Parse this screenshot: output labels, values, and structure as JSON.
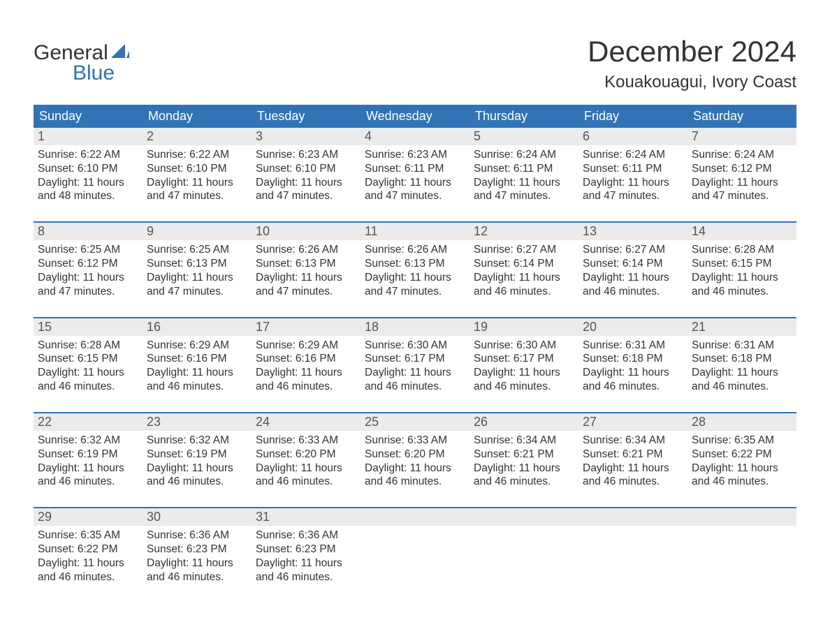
{
  "logo": {
    "word1": "General",
    "word2": "Blue",
    "brand_color": "#3173b4",
    "text_color": "#333333"
  },
  "title": "December 2024",
  "location": "Kouakouagui, Ivory Coast",
  "colors": {
    "header_bg": "#3173b4",
    "header_text": "#ffffff",
    "daynum_bg": "#ebebeb",
    "daynum_text": "#555555",
    "body_text": "#333333",
    "row_border": "#3173b4",
    "page_bg": "#ffffff"
  },
  "weekdays": [
    "Sunday",
    "Monday",
    "Tuesday",
    "Wednesday",
    "Thursday",
    "Friday",
    "Saturday"
  ],
  "weeks": [
    [
      {
        "day": "1",
        "sunrise": "Sunrise: 6:22 AM",
        "sunset": "Sunset: 6:10 PM",
        "dl1": "Daylight: 11 hours",
        "dl2": "and 48 minutes."
      },
      {
        "day": "2",
        "sunrise": "Sunrise: 6:22 AM",
        "sunset": "Sunset: 6:10 PM",
        "dl1": "Daylight: 11 hours",
        "dl2": "and 47 minutes."
      },
      {
        "day": "3",
        "sunrise": "Sunrise: 6:23 AM",
        "sunset": "Sunset: 6:10 PM",
        "dl1": "Daylight: 11 hours",
        "dl2": "and 47 minutes."
      },
      {
        "day": "4",
        "sunrise": "Sunrise: 6:23 AM",
        "sunset": "Sunset: 6:11 PM",
        "dl1": "Daylight: 11 hours",
        "dl2": "and 47 minutes."
      },
      {
        "day": "5",
        "sunrise": "Sunrise: 6:24 AM",
        "sunset": "Sunset: 6:11 PM",
        "dl1": "Daylight: 11 hours",
        "dl2": "and 47 minutes."
      },
      {
        "day": "6",
        "sunrise": "Sunrise: 6:24 AM",
        "sunset": "Sunset: 6:11 PM",
        "dl1": "Daylight: 11 hours",
        "dl2": "and 47 minutes."
      },
      {
        "day": "7",
        "sunrise": "Sunrise: 6:24 AM",
        "sunset": "Sunset: 6:12 PM",
        "dl1": "Daylight: 11 hours",
        "dl2": "and 47 minutes."
      }
    ],
    [
      {
        "day": "8",
        "sunrise": "Sunrise: 6:25 AM",
        "sunset": "Sunset: 6:12 PM",
        "dl1": "Daylight: 11 hours",
        "dl2": "and 47 minutes."
      },
      {
        "day": "9",
        "sunrise": "Sunrise: 6:25 AM",
        "sunset": "Sunset: 6:13 PM",
        "dl1": "Daylight: 11 hours",
        "dl2": "and 47 minutes."
      },
      {
        "day": "10",
        "sunrise": "Sunrise: 6:26 AM",
        "sunset": "Sunset: 6:13 PM",
        "dl1": "Daylight: 11 hours",
        "dl2": "and 47 minutes."
      },
      {
        "day": "11",
        "sunrise": "Sunrise: 6:26 AM",
        "sunset": "Sunset: 6:13 PM",
        "dl1": "Daylight: 11 hours",
        "dl2": "and 47 minutes."
      },
      {
        "day": "12",
        "sunrise": "Sunrise: 6:27 AM",
        "sunset": "Sunset: 6:14 PM",
        "dl1": "Daylight: 11 hours",
        "dl2": "and 46 minutes."
      },
      {
        "day": "13",
        "sunrise": "Sunrise: 6:27 AM",
        "sunset": "Sunset: 6:14 PM",
        "dl1": "Daylight: 11 hours",
        "dl2": "and 46 minutes."
      },
      {
        "day": "14",
        "sunrise": "Sunrise: 6:28 AM",
        "sunset": "Sunset: 6:15 PM",
        "dl1": "Daylight: 11 hours",
        "dl2": "and 46 minutes."
      }
    ],
    [
      {
        "day": "15",
        "sunrise": "Sunrise: 6:28 AM",
        "sunset": "Sunset: 6:15 PM",
        "dl1": "Daylight: 11 hours",
        "dl2": "and 46 minutes."
      },
      {
        "day": "16",
        "sunrise": "Sunrise: 6:29 AM",
        "sunset": "Sunset: 6:16 PM",
        "dl1": "Daylight: 11 hours",
        "dl2": "and 46 minutes."
      },
      {
        "day": "17",
        "sunrise": "Sunrise: 6:29 AM",
        "sunset": "Sunset: 6:16 PM",
        "dl1": "Daylight: 11 hours",
        "dl2": "and 46 minutes."
      },
      {
        "day": "18",
        "sunrise": "Sunrise: 6:30 AM",
        "sunset": "Sunset: 6:17 PM",
        "dl1": "Daylight: 11 hours",
        "dl2": "and 46 minutes."
      },
      {
        "day": "19",
        "sunrise": "Sunrise: 6:30 AM",
        "sunset": "Sunset: 6:17 PM",
        "dl1": "Daylight: 11 hours",
        "dl2": "and 46 minutes."
      },
      {
        "day": "20",
        "sunrise": "Sunrise: 6:31 AM",
        "sunset": "Sunset: 6:18 PM",
        "dl1": "Daylight: 11 hours",
        "dl2": "and 46 minutes."
      },
      {
        "day": "21",
        "sunrise": "Sunrise: 6:31 AM",
        "sunset": "Sunset: 6:18 PM",
        "dl1": "Daylight: 11 hours",
        "dl2": "and 46 minutes."
      }
    ],
    [
      {
        "day": "22",
        "sunrise": "Sunrise: 6:32 AM",
        "sunset": "Sunset: 6:19 PM",
        "dl1": "Daylight: 11 hours",
        "dl2": "and 46 minutes."
      },
      {
        "day": "23",
        "sunrise": "Sunrise: 6:32 AM",
        "sunset": "Sunset: 6:19 PM",
        "dl1": "Daylight: 11 hours",
        "dl2": "and 46 minutes."
      },
      {
        "day": "24",
        "sunrise": "Sunrise: 6:33 AM",
        "sunset": "Sunset: 6:20 PM",
        "dl1": "Daylight: 11 hours",
        "dl2": "and 46 minutes."
      },
      {
        "day": "25",
        "sunrise": "Sunrise: 6:33 AM",
        "sunset": "Sunset: 6:20 PM",
        "dl1": "Daylight: 11 hours",
        "dl2": "and 46 minutes."
      },
      {
        "day": "26",
        "sunrise": "Sunrise: 6:34 AM",
        "sunset": "Sunset: 6:21 PM",
        "dl1": "Daylight: 11 hours",
        "dl2": "and 46 minutes."
      },
      {
        "day": "27",
        "sunrise": "Sunrise: 6:34 AM",
        "sunset": "Sunset: 6:21 PM",
        "dl1": "Daylight: 11 hours",
        "dl2": "and 46 minutes."
      },
      {
        "day": "28",
        "sunrise": "Sunrise: 6:35 AM",
        "sunset": "Sunset: 6:22 PM",
        "dl1": "Daylight: 11 hours",
        "dl2": "and 46 minutes."
      }
    ],
    [
      {
        "day": "29",
        "sunrise": "Sunrise: 6:35 AM",
        "sunset": "Sunset: 6:22 PM",
        "dl1": "Daylight: 11 hours",
        "dl2": "and 46 minutes."
      },
      {
        "day": "30",
        "sunrise": "Sunrise: 6:36 AM",
        "sunset": "Sunset: 6:23 PM",
        "dl1": "Daylight: 11 hours",
        "dl2": "and 46 minutes."
      },
      {
        "day": "31",
        "sunrise": "Sunrise: 6:36 AM",
        "sunset": "Sunset: 6:23 PM",
        "dl1": "Daylight: 11 hours",
        "dl2": "and 46 minutes."
      },
      null,
      null,
      null,
      null
    ]
  ]
}
